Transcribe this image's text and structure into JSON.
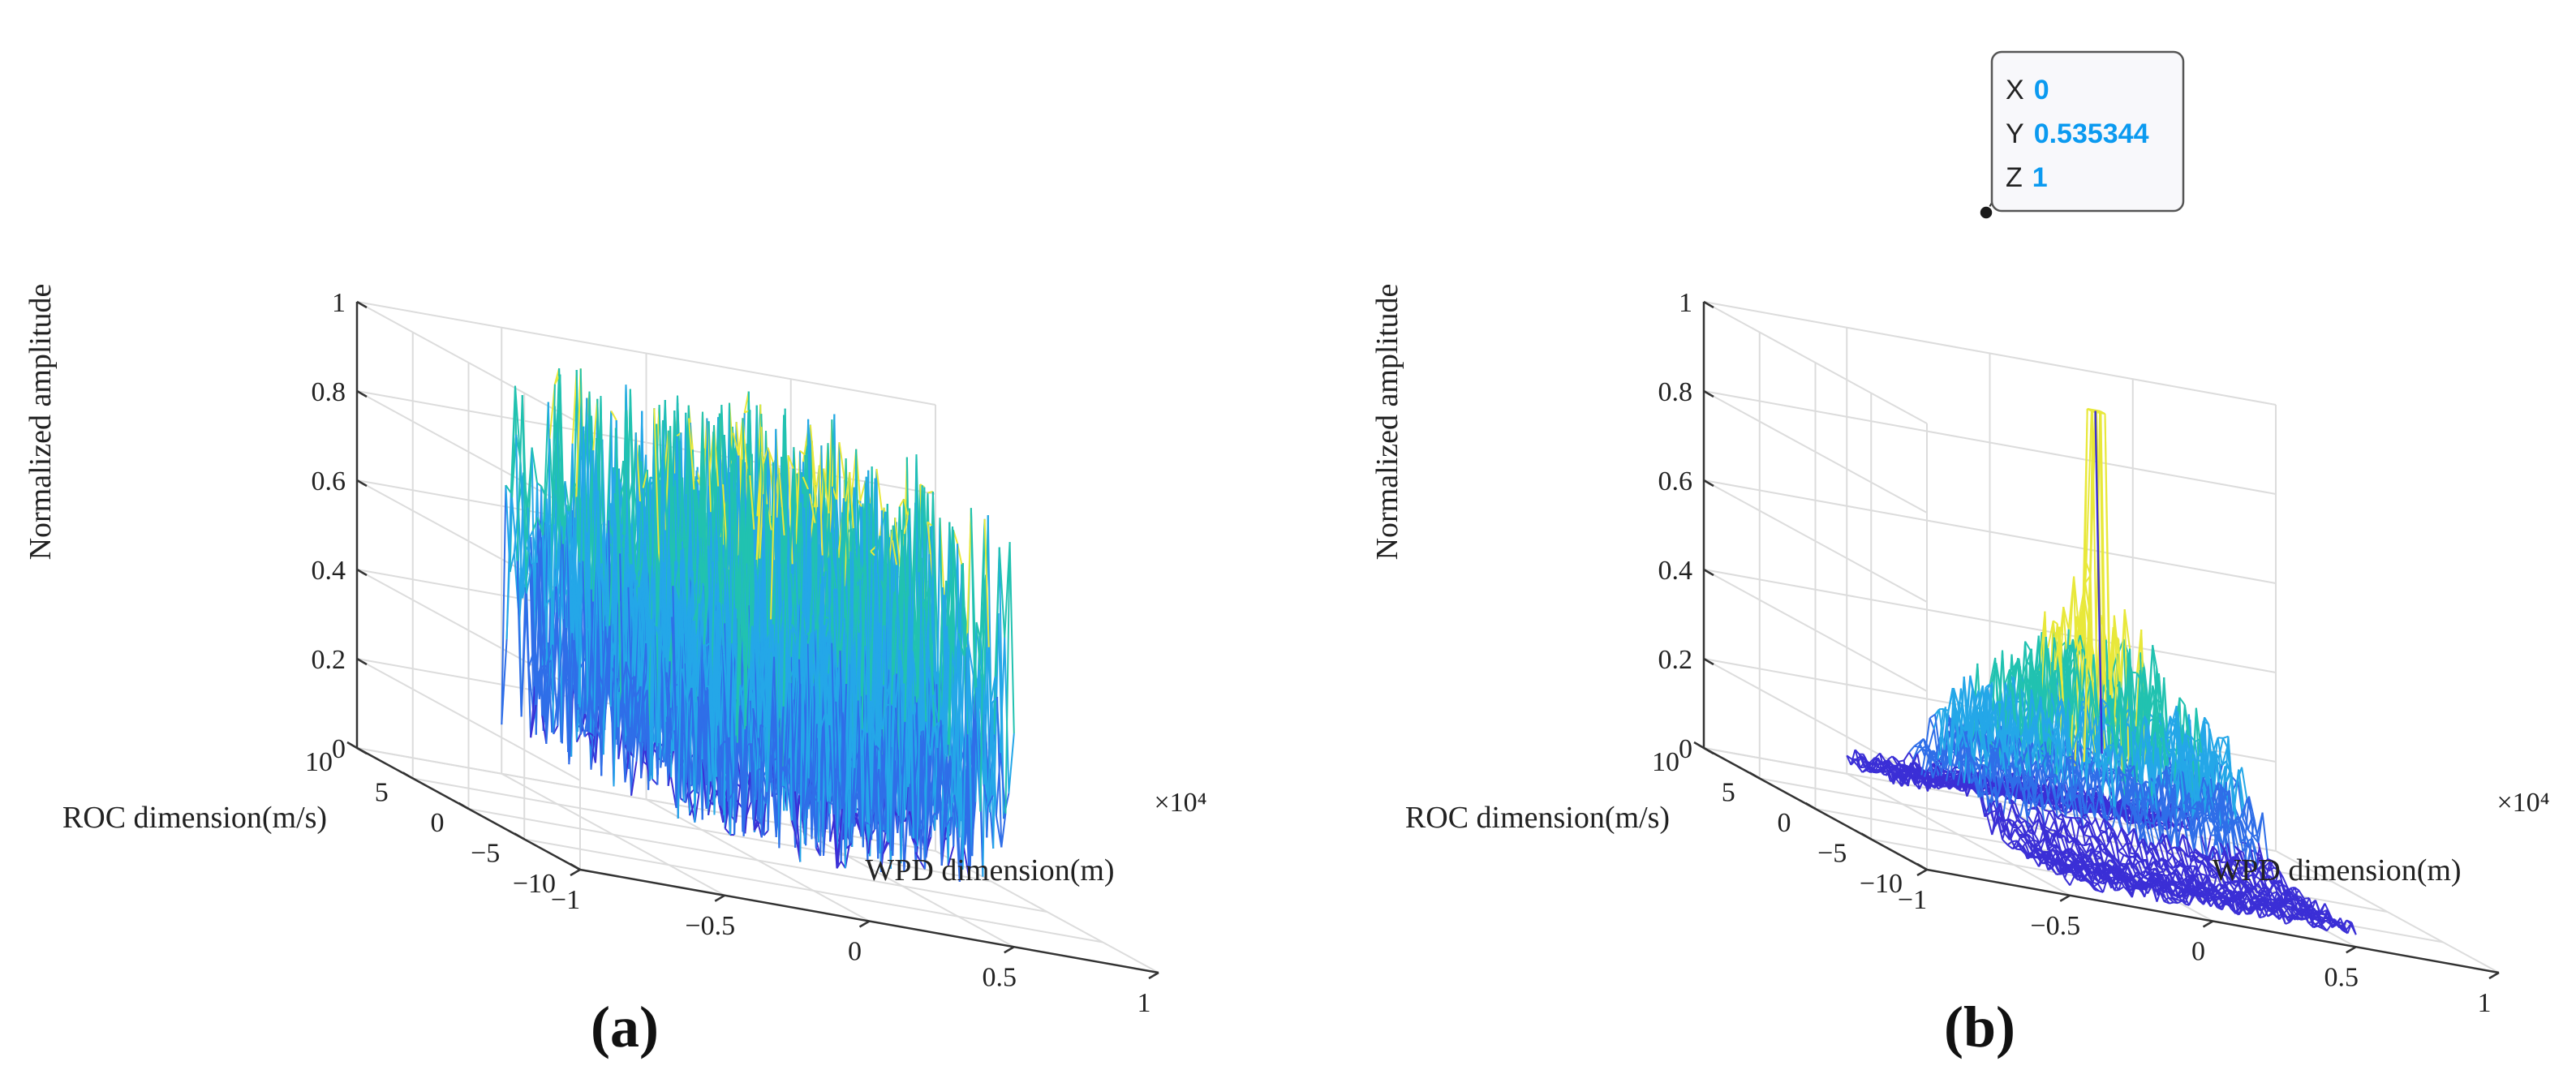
{
  "chart_data": [
    {
      "type": "surface-mesh",
      "panel_label": "(a)",
      "title": "",
      "xlabel": "WPD dimension(m)",
      "ylabel": "ROC dimension(m/s)",
      "zlabel": "Normalized amplitude",
      "x_exponent_label": "×10⁴",
      "x_ticks": [
        "−1",
        "−0.5",
        "0",
        "0.5",
        "1"
      ],
      "y_ticks": [
        "10",
        "5",
        "0",
        "−5",
        "−10"
      ],
      "z_ticks": [
        "0",
        "0.2",
        "0.4",
        "0.6",
        "0.8",
        "1"
      ],
      "xlim": [
        -10000,
        10000
      ],
      "ylim": [
        -10,
        10
      ],
      "zlim": [
        0,
        1
      ],
      "x_data_range": [
        -5000,
        5000
      ],
      "y_data_range": [
        -10,
        10
      ],
      "description_values": {
        "noise_floor": 0.55,
        "noise_spread": 0.45
      },
      "colormap": [
        "#3b2fd6",
        "#2f6ee8",
        "#24a7e8",
        "#21c2b0",
        "#e8e83a"
      ]
    },
    {
      "type": "surface-mesh",
      "panel_label": "(b)",
      "title": "",
      "xlabel": "WPD dimension(m)",
      "ylabel": "ROC dimension(m/s)",
      "zlabel": "Normalized amplitude",
      "x_exponent_label": "×10⁴",
      "x_ticks": [
        "−1",
        "−0.5",
        "0",
        "0.5",
        "1"
      ],
      "y_ticks": [
        "10",
        "5",
        "0",
        "−5",
        "−10"
      ],
      "z_ticks": [
        "0",
        "0.2",
        "0.4",
        "0.6",
        "0.8",
        "1"
      ],
      "xlim": [
        -10000,
        10000
      ],
      "ylim": [
        -10,
        10
      ],
      "zlim": [
        0,
        1
      ],
      "x_data_range": [
        -5000,
        5000
      ],
      "y_data_range": [
        -10,
        10
      ],
      "peak": {
        "x": 0,
        "y": 0.535344,
        "z": 1
      },
      "ridge_amplitude": 0.35,
      "datatip": {
        "x_key": "X",
        "x_val": "0",
        "y_key": "Y",
        "y_val": "0.535344",
        "z_key": "Z",
        "z_val": "1"
      },
      "colormap": [
        "#3b2fd6",
        "#2f6ee8",
        "#24a7e8",
        "#21c2b0",
        "#e8e83a"
      ]
    }
  ]
}
